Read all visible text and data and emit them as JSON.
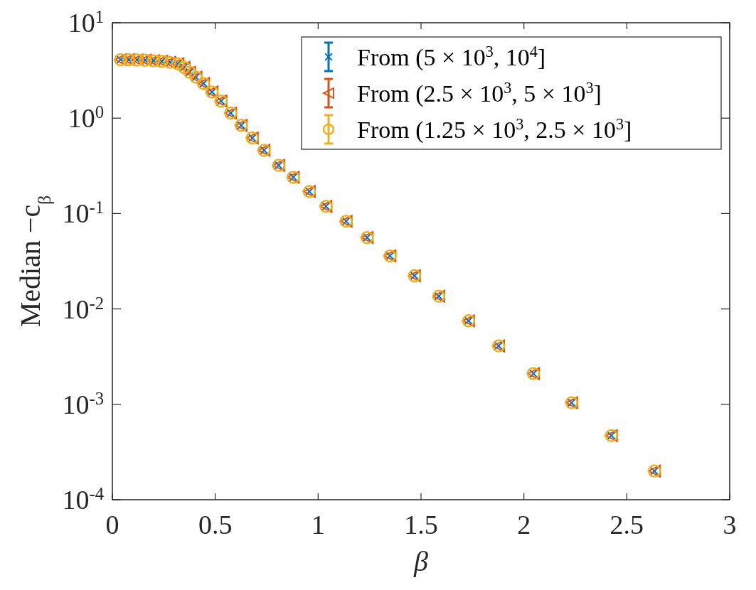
{
  "chart_data": {
    "type": "scatter",
    "xlabel": "β",
    "ylabel": "Median −c$_{β}$",
    "log": "y",
    "legend": "top right",
    "grid": false,
    "xlim": [
      0,
      3
    ],
    "xticks": [
      0,
      0.5,
      1,
      1.5,
      2,
      2.5,
      3
    ],
    "ylim": [
      0.0001,
      10
    ],
    "yticks": [
      {
        "value": 0.0001,
        "label": "10$^{-4}$"
      },
      {
        "value": 0.001,
        "label": "10$^{-3}$"
      },
      {
        "value": 0.01,
        "label": "10$^{-2}$"
      },
      {
        "value": 0.1,
        "label": "10$^{-1}$"
      },
      {
        "value": 1,
        "label": "10$^{0}$"
      },
      {
        "value": 10,
        "label": "10$^{1}$"
      }
    ],
    "x": [
      0.04,
      0.08,
      0.12,
      0.16,
      0.2,
      0.24,
      0.28,
      0.318,
      0.348,
      0.375,
      0.406,
      0.443,
      0.484,
      0.528,
      0.575,
      0.626,
      0.68,
      0.737,
      0.808,
      0.879,
      0.957,
      1.038,
      1.136,
      1.238,
      1.349,
      1.468,
      1.586,
      1.731,
      1.877,
      2.046,
      2.232,
      2.425,
      2.634
    ],
    "series": [
      {
        "name": "From (5 × 10$^{3}$, 10$^{4}$]",
        "color": "#0072bd",
        "marker": "cross",
        "values": [
          4.1,
          4.1,
          4.08,
          4.05,
          4.0,
          3.95,
          3.85,
          3.72,
          3.41,
          3.03,
          2.69,
          2.31,
          1.88,
          1.51,
          1.13,
          0.84,
          0.62,
          0.46,
          0.32,
          0.24,
          0.17,
          0.119,
          0.083,
          0.056,
          0.036,
          0.0223,
          0.0136,
          0.0075,
          0.0041,
          0.0021,
          0.00104,
          0.00047,
          0.0002
        ]
      },
      {
        "name": "From (2.5 × 10$^{3}$, 5 × 10$^{3}$]",
        "color": "#d95319",
        "marker": "triangle",
        "values": [
          4.1,
          4.1,
          4.08,
          4.05,
          4.0,
          3.95,
          3.85,
          3.72,
          3.41,
          3.03,
          2.69,
          2.31,
          1.88,
          1.51,
          1.13,
          0.84,
          0.62,
          0.46,
          0.32,
          0.24,
          0.17,
          0.119,
          0.083,
          0.056,
          0.036,
          0.0223,
          0.0136,
          0.0075,
          0.0041,
          0.0021,
          0.00104,
          0.00047,
          0.0002
        ]
      },
      {
        "name": "From (1.25 × 10$^{3}$, 2.5 × 10$^{3}$]",
        "color": "#edb120",
        "marker": "circle",
        "values": [
          4.1,
          4.1,
          4.08,
          4.05,
          4.0,
          3.95,
          3.85,
          3.72,
          3.41,
          3.03,
          2.69,
          2.31,
          1.88,
          1.51,
          1.13,
          0.84,
          0.62,
          0.46,
          0.32,
          0.24,
          0.17,
          0.119,
          0.083,
          0.056,
          0.036,
          0.0223,
          0.0136,
          0.0075,
          0.0041,
          0.0021,
          0.00104,
          0.00047,
          0.0002
        ]
      }
    ]
  }
}
